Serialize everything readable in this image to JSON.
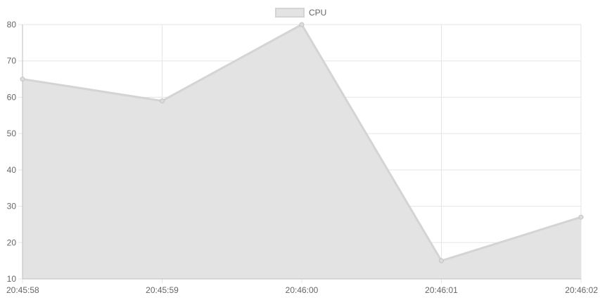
{
  "chart_data": {
    "type": "area",
    "title": "",
    "xlabel": "",
    "ylabel": "",
    "categories": [
      "20:45:58",
      "20:45:59",
      "20:46:00",
      "20:46:01",
      "20:46:02"
    ],
    "series": [
      {
        "name": "CPU",
        "values": [
          65,
          59,
          80,
          15,
          27
        ],
        "stroke_color": "#d4d4d4",
        "fill_color": "#e3e3e3"
      }
    ],
    "yticks": [
      10,
      20,
      30,
      40,
      50,
      60,
      70,
      80
    ],
    "ylim": [
      10,
      80
    ],
    "grid": true,
    "legend": "top-center"
  }
}
